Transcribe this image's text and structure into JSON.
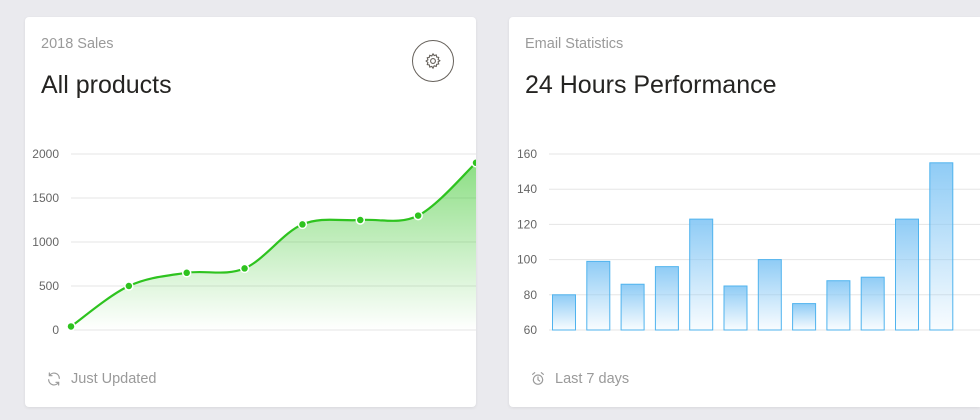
{
  "sales_card": {
    "category": "2018 Sales",
    "title": "All products",
    "footer": "Just Updated",
    "footer_icon": "refresh-icon",
    "settings_icon": "gear-icon"
  },
  "email_card": {
    "category": "Email Statistics",
    "title": "24 Hours Performance",
    "footer": "Last 7 days",
    "footer_icon": "alarm-clock-icon"
  },
  "colors": {
    "line": "#2ec31f",
    "bar_stroke": "#4fb3ee",
    "bar_fill_top": "#89c9f5",
    "grid": "#e5e5e5"
  },
  "chart_data": [
    {
      "type": "line",
      "title": "All products",
      "yticks": [
        "2000",
        "1500",
        "1000",
        "500",
        "0"
      ],
      "ylim": [
        0,
        2000
      ],
      "values": [
        40,
        500,
        650,
        700,
        1200,
        1250,
        1300,
        1900
      ]
    },
    {
      "type": "bar",
      "title": "24 Hours Performance",
      "yticks": [
        "160",
        "140",
        "120",
        "100",
        "80",
        "60"
      ],
      "ylim": [
        60,
        160
      ],
      "values": [
        80,
        99,
        86,
        96,
        123,
        85,
        100,
        75,
        88,
        90,
        123,
        155
      ]
    }
  ]
}
